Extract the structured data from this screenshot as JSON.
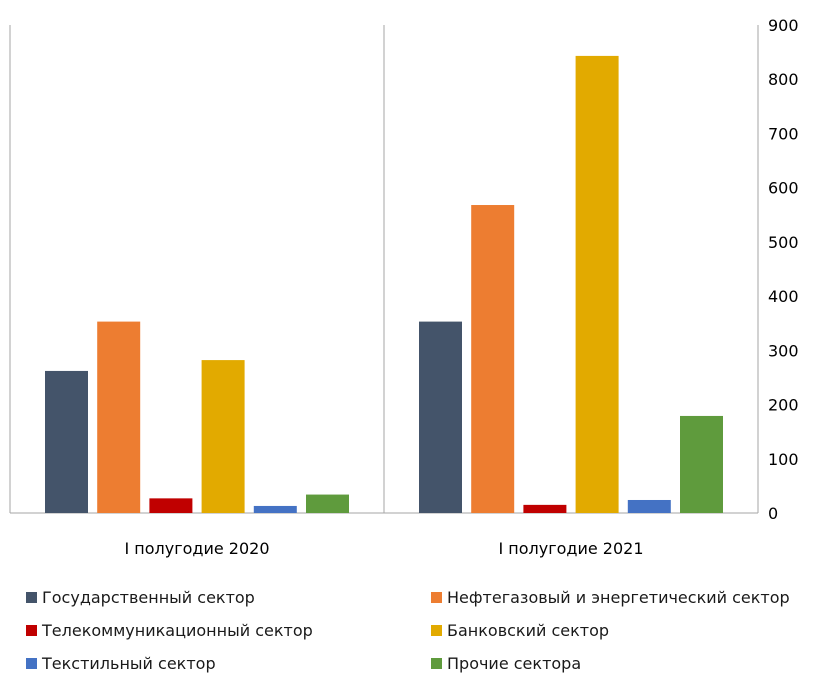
{
  "chart_data": {
    "type": "bar",
    "categories": [
      "I полугодие 2020",
      "I полугодие 2021"
    ],
    "series": [
      {
        "name": "Государственный сектор",
        "values": [
          262,
          353
        ],
        "color": "#44546A"
      },
      {
        "name": "Нефтегазовый и энергетический сектор",
        "values": [
          353,
          568
        ],
        "color": "#ED7D31"
      },
      {
        "name": "Телекоммуникационный сектор",
        "values": [
          27,
          15
        ],
        "color": "#C00000"
      },
      {
        "name": "Банковский сектор",
        "values": [
          282,
          843
        ],
        "color": "#E2AA00"
      },
      {
        "name": "Текстильный сектор",
        "values": [
          13,
          24
        ],
        "color": "#4472C4"
      },
      {
        "name": "Прочие сектора",
        "values": [
          34,
          179
        ],
        "color": "#5F9B3D"
      }
    ],
    "ylim": [
      0,
      900
    ],
    "yticks": [
      "0",
      "100",
      "200",
      "300",
      "400",
      "500",
      "600",
      "700",
      "800",
      "900"
    ],
    "y_axis_position": "right",
    "grid": false,
    "legend_position": "bottom",
    "title": "",
    "xlabel": "",
    "ylabel": ""
  }
}
